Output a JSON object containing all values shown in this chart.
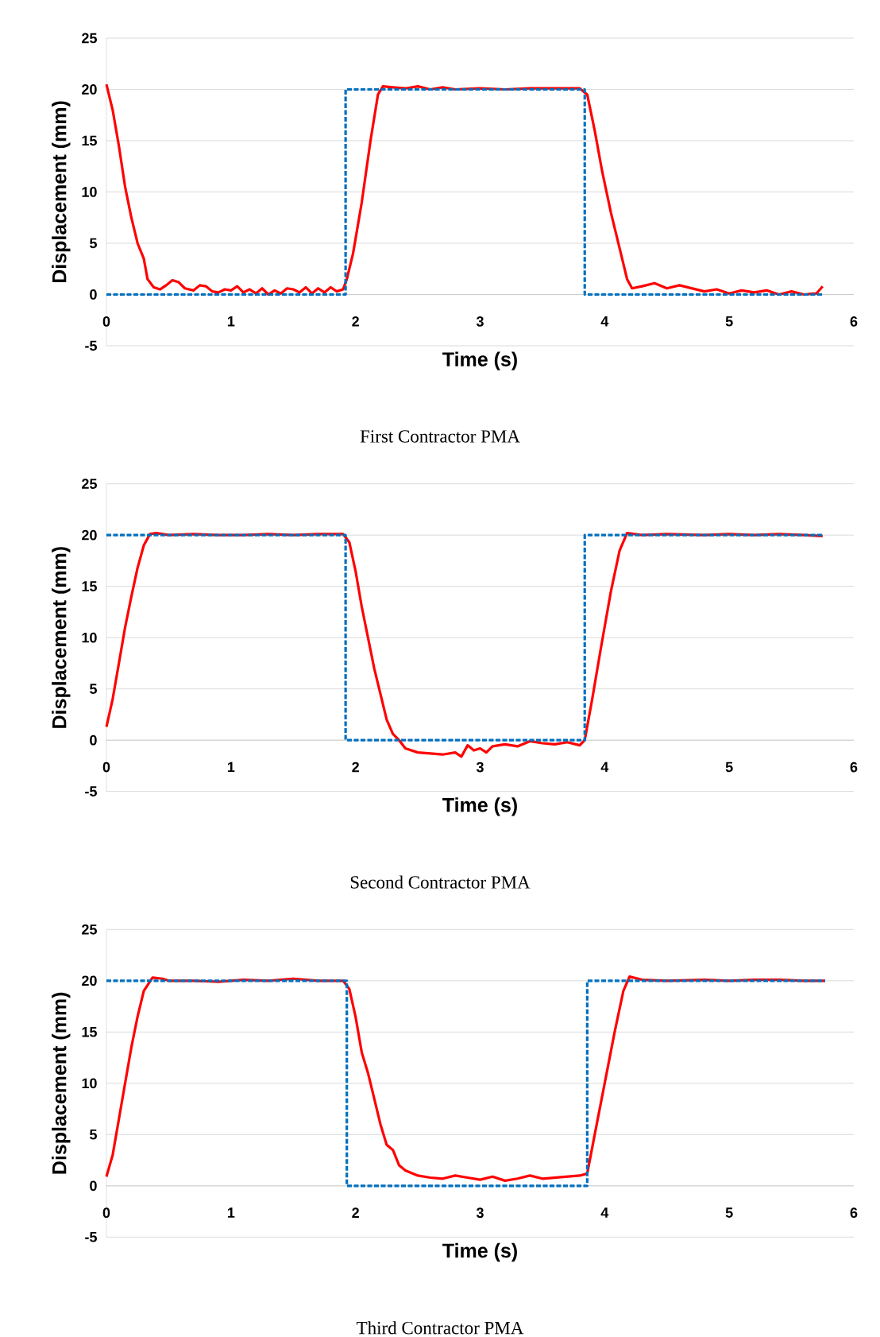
{
  "chart_data": [
    {
      "type": "line",
      "xlabel": "Time (s)",
      "ylabel": "Displacement (mm)",
      "annotations": [
        "First Contractor PMA"
      ],
      "xlim": [
        0,
        6
      ],
      "ylim": [
        -5,
        25
      ],
      "xticks": [
        0,
        1,
        2,
        3,
        4,
        5,
        6
      ],
      "yticks": [
        -5,
        0,
        5,
        10,
        15,
        20,
        25
      ],
      "grid": "y",
      "series": [
        {
          "color": "#0070c0",
          "line_style": "dashed",
          "x": [
            0,
            1.92,
            1.92,
            3.84,
            3.84,
            5.75
          ],
          "values": [
            0,
            0,
            20,
            20,
            0,
            0
          ]
        },
        {
          "color": "#ff0000",
          "line_style": "solid",
          "x": [
            0,
            0.05,
            0.1,
            0.15,
            0.2,
            0.25,
            0.3,
            0.33,
            0.38,
            0.43,
            0.48,
            0.53,
            0.58,
            0.63,
            0.7,
            0.75,
            0.8,
            0.85,
            0.9,
            0.95,
            1.0,
            1.05,
            1.1,
            1.15,
            1.2,
            1.25,
            1.3,
            1.35,
            1.4,
            1.45,
            1.5,
            1.55,
            1.6,
            1.65,
            1.7,
            1.75,
            1.8,
            1.85,
            1.9,
            1.93,
            1.98,
            2.05,
            2.12,
            2.18,
            2.22,
            2.3,
            2.4,
            2.5,
            2.6,
            2.7,
            2.8,
            3.0,
            3.2,
            3.4,
            3.6,
            3.8,
            3.86,
            3.92,
            3.98,
            4.05,
            4.12,
            4.18,
            4.22,
            4.3,
            4.4,
            4.5,
            4.6,
            4.7,
            4.8,
            4.9,
            5.0,
            5.1,
            5.2,
            5.3,
            5.4,
            5.5,
            5.6,
            5.7,
            5.75
          ],
          "values": [
            20.5,
            18,
            14.5,
            10.5,
            7.5,
            5,
            3.5,
            1.5,
            0.7,
            0.5,
            0.9,
            1.4,
            1.2,
            0.6,
            0.4,
            0.9,
            0.8,
            0.3,
            0.2,
            0.5,
            0.4,
            0.8,
            0.2,
            0.5,
            0.1,
            0.6,
            0.0,
            0.4,
            0.1,
            0.6,
            0.5,
            0.2,
            0.7,
            0.1,
            0.6,
            0.2,
            0.7,
            0.3,
            0.5,
            1.5,
            4,
            9,
            15,
            19.5,
            20.3,
            20.2,
            20.1,
            20.3,
            20.0,
            20.2,
            20.0,
            20.1,
            20.0,
            20.1,
            20.1,
            20.1,
            19.5,
            16,
            12,
            8,
            4.5,
            1.5,
            0.6,
            0.8,
            1.1,
            0.6,
            0.9,
            0.6,
            0.3,
            0.5,
            0.1,
            0.4,
            0.2,
            0.4,
            0.0,
            0.3,
            0.0,
            0.1,
            0.8
          ]
        }
      ]
    },
    {
      "type": "line",
      "xlabel": "Time (s)",
      "ylabel": "Displacement (mm)",
      "annotations": [
        "Second Contractor PMA"
      ],
      "xlim": [
        0,
        6
      ],
      "ylim": [
        -5,
        25
      ],
      "xticks": [
        0,
        1,
        2,
        3,
        4,
        5,
        6
      ],
      "yticks": [
        -5,
        0,
        5,
        10,
        15,
        20,
        25
      ],
      "grid": "y",
      "series": [
        {
          "color": "#0070c0",
          "line_style": "dashed",
          "x": [
            0,
            1.92,
            1.92,
            3.84,
            3.84,
            5.75
          ],
          "values": [
            20,
            20,
            0,
            0,
            20,
            20
          ]
        },
        {
          "color": "#ff0000",
          "line_style": "solid",
          "x": [
            0,
            0.05,
            0.1,
            0.15,
            0.2,
            0.25,
            0.3,
            0.35,
            0.4,
            0.5,
            0.7,
            0.9,
            1.1,
            1.3,
            1.5,
            1.7,
            1.9,
            1.95,
            2.0,
            2.05,
            2.1,
            2.15,
            2.2,
            2.25,
            2.3,
            2.35,
            2.4,
            2.5,
            2.6,
            2.7,
            2.8,
            2.85,
            2.9,
            2.95,
            3.0,
            3.05,
            3.1,
            3.2,
            3.3,
            3.4,
            3.5,
            3.6,
            3.7,
            3.8,
            3.84,
            3.9,
            3.97,
            4.05,
            4.12,
            4.18,
            4.3,
            4.5,
            4.8,
            5.0,
            5.2,
            5.4,
            5.6,
            5.75
          ],
          "values": [
            1.3,
            4,
            7.5,
            11,
            14,
            16.8,
            19,
            20.1,
            20.2,
            20.0,
            20.1,
            20.0,
            20.0,
            20.1,
            20.0,
            20.1,
            20.1,
            19.3,
            16.5,
            13,
            10,
            7,
            4.5,
            2,
            0.6,
            0,
            -0.8,
            -1.2,
            -1.3,
            -1.4,
            -1.2,
            -1.6,
            -0.5,
            -1.0,
            -0.8,
            -1.2,
            -0.6,
            -0.4,
            -0.6,
            -0.1,
            -0.3,
            -0.4,
            -0.2,
            -0.5,
            0,
            4,
            9,
            14.5,
            18.5,
            20.2,
            20.0,
            20.1,
            20.0,
            20.1,
            20.0,
            20.1,
            20.0,
            19.9
          ]
        }
      ]
    },
    {
      "type": "line",
      "xlabel": "Time (s)",
      "ylabel": "Displacement (mm)",
      "annotations": [
        "Third Contractor PMA"
      ],
      "xlim": [
        0,
        6
      ],
      "ylim": [
        -5,
        25
      ],
      "xticks": [
        0,
        1,
        2,
        3,
        4,
        5,
        6
      ],
      "yticks": [
        -5,
        0,
        5,
        10,
        15,
        20,
        25
      ],
      "grid": "y",
      "series": [
        {
          "color": "#0070c0",
          "line_style": "dashed",
          "x": [
            0,
            1.93,
            1.93,
            3.86,
            3.86,
            5.77
          ],
          "values": [
            20,
            20,
            0,
            0,
            20,
            20
          ]
        },
        {
          "color": "#ff0000",
          "line_style": "solid",
          "x": [
            0,
            0.05,
            0.1,
            0.15,
            0.2,
            0.25,
            0.3,
            0.37,
            0.45,
            0.5,
            0.7,
            0.9,
            1.1,
            1.3,
            1.5,
            1.7,
            1.9,
            1.95,
            2.0,
            2.05,
            2.1,
            2.15,
            2.2,
            2.25,
            2.3,
            2.35,
            2.4,
            2.5,
            2.6,
            2.7,
            2.8,
            2.9,
            3.0,
            3.1,
            3.2,
            3.3,
            3.4,
            3.5,
            3.6,
            3.7,
            3.8,
            3.86,
            3.92,
            4.0,
            4.08,
            4.15,
            4.2,
            4.3,
            4.5,
            4.8,
            5.0,
            5.2,
            5.4,
            5.6,
            5.77
          ],
          "values": [
            0.9,
            3,
            6.5,
            10,
            13.5,
            16.5,
            19,
            20.3,
            20.2,
            20.0,
            20.0,
            19.9,
            20.1,
            20.0,
            20.2,
            20.0,
            20.0,
            19.2,
            16.5,
            13,
            11,
            8.5,
            6,
            4,
            3.5,
            2,
            1.5,
            1.0,
            0.8,
            0.7,
            1.0,
            0.8,
            0.6,
            0.9,
            0.5,
            0.7,
            1.0,
            0.7,
            0.8,
            0.9,
            1.0,
            1.2,
            5,
            10,
            15,
            19,
            20.4,
            20.1,
            20.0,
            20.1,
            20.0,
            20.1,
            20.1,
            20.0,
            20.0
          ]
        }
      ]
    }
  ]
}
